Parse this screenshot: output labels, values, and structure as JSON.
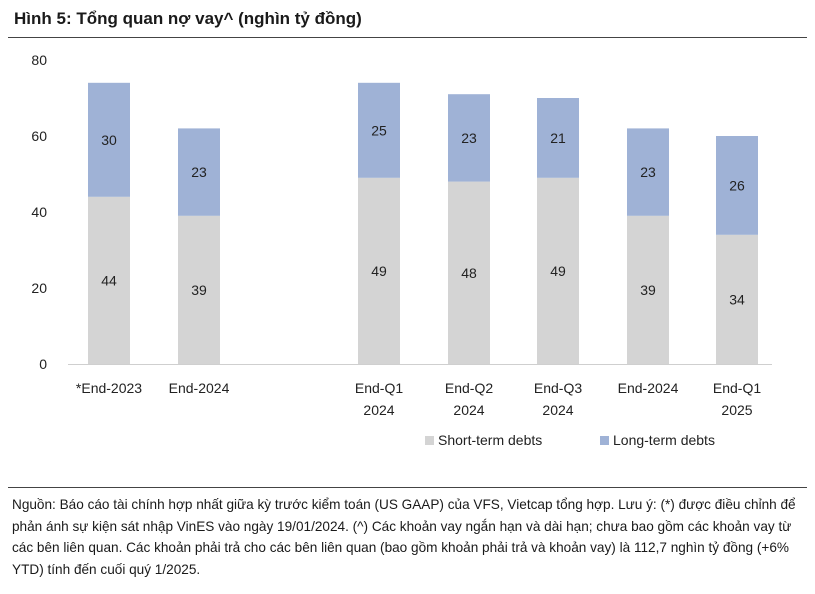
{
  "title": "Hình 5: Tổng quan nợ vay^ (nghìn tỷ đồng)",
  "source_note": "Nguồn: Báo cáo tài chính hợp nhất giữa kỳ trước kiểm toán (US GAAP) của VFS, Vietcap tổng hợp. Lưu ý: (*) được điều chỉnh để phản ánh sự kiện sát nhập VinES vào ngày 19/01/2024. (^) Các khoản vay ngắn hạn và dài hạn; chưa bao gồm các khoản vay từ các bên liên quan. Các khoản phải trả cho các bên liên quan (bao gồm khoản phải trả và khoản vay) là 112,7 nghìn tỷ đồng (+6% YTD) tính đến cuối quý 1/2025.",
  "colors": {
    "short_term": "#d4d4d4",
    "long_term": "#9fb2d6",
    "text": "#222222",
    "axis": "#cfcfcf"
  },
  "chart_data": {
    "type": "bar",
    "stacked": true,
    "title": "Hình 5: Tổng quan nợ vay^ (nghìn tỷ đồng)",
    "xlabel": "",
    "ylabel": "",
    "ylim": [
      0,
      80
    ],
    "yticks": [
      "0",
      "20",
      "40",
      "60",
      "80"
    ],
    "grid": false,
    "legend_position": "bottom-right",
    "groups": [
      {
        "categories": [
          [
            "*End-2023"
          ],
          [
            "End-2024"
          ]
        ]
      },
      {
        "categories": [
          [
            "End-Q1",
            "2024"
          ],
          [
            "End-Q2",
            "2024"
          ],
          [
            "End-Q3",
            "2024"
          ],
          [
            "End-2024"
          ],
          [
            "End-Q1",
            "2025"
          ]
        ]
      }
    ],
    "series": [
      {
        "name": "Short-term debts",
        "values": [
          44,
          39,
          49,
          48,
          49,
          39,
          34
        ],
        "labels": [
          "44",
          "39",
          "49",
          "48",
          "49",
          "39",
          "34"
        ]
      },
      {
        "name": "Long-term debts",
        "values": [
          30,
          23,
          25,
          23,
          21,
          23,
          26
        ],
        "labels": [
          "30",
          "23",
          "25",
          "23",
          "21",
          "23",
          "26"
        ]
      }
    ]
  }
}
